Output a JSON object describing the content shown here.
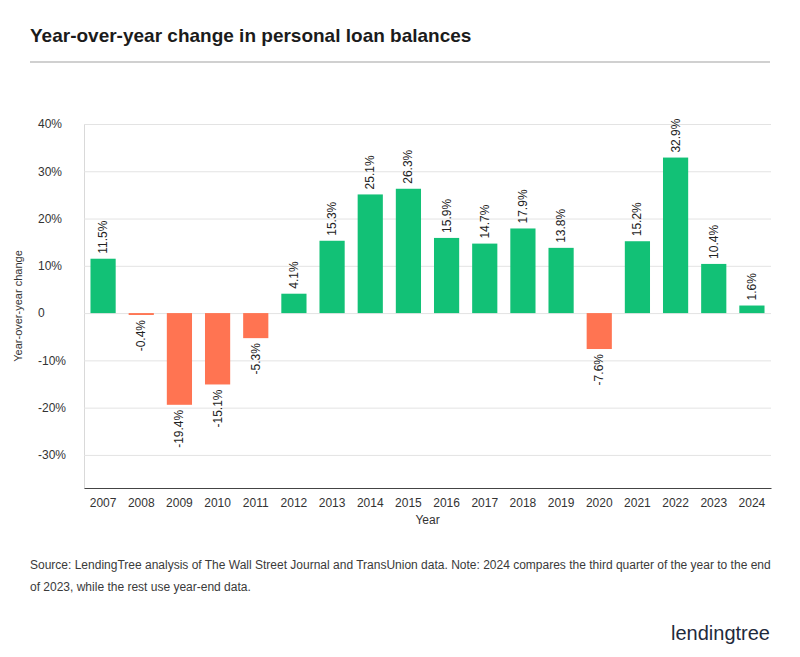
{
  "chart_data": {
    "type": "bar",
    "title": "Year-over-year change in personal loan balances",
    "x_label": "Year",
    "y_label": "Year-over-year change",
    "annotations": [
      "Source: LendingTree analysis of The Wall Street Journal and TransUnion data. Note: 2024 compares the third quarter of the year to the end of 2023, while the rest use year-end data.",
      "lendingtree"
    ],
    "categories": [
      "2007",
      "2008",
      "2009",
      "2010",
      "2011",
      "2012",
      "2013",
      "2014",
      "2015",
      "2016",
      "2017",
      "2018",
      "2019",
      "2020",
      "2021",
      "2022",
      "2023",
      "2024"
    ],
    "values": [
      11.5,
      -0.4,
      -19.4,
      -15.1,
      -5.3,
      4.1,
      15.3,
      25.1,
      26.3,
      15.9,
      14.7,
      17.9,
      13.8,
      -7.6,
      15.2,
      32.9,
      10.4,
      1.6
    ],
    "value_labels": [
      "11.5%",
      "-0.4%",
      "-19.4%",
      "-15.1%",
      "-5.3%",
      "4.1%",
      "15.3%",
      "25.1%",
      "26.3%",
      "15.9%",
      "14.7%",
      "17.9%",
      "13.8%",
      "-7.6%",
      "15.2%",
      "32.9%",
      "10.4%",
      "1.6%"
    ],
    "colors": [
      "#12c176",
      "#ff7452",
      "#ff7452",
      "#ff7452",
      "#ff7452",
      "#12c176",
      "#12c176",
      "#12c176",
      "#12c176",
      "#12c176",
      "#12c176",
      "#12c176",
      "#12c176",
      "#ff7452",
      "#12c176",
      "#12c176",
      "#12c176",
      "#12c176"
    ],
    "ylim": [
      -37,
      40
    ],
    "yticks": [
      {
        "value": -30,
        "label": "-30%"
      },
      {
        "value": -20,
        "label": "-20%"
      },
      {
        "value": -10,
        "label": "-10%"
      },
      0,
      {
        "value": 10,
        "label": "10%"
      },
      {
        "value": 20,
        "label": "20%"
      },
      {
        "value": 30,
        "label": "30%"
      },
      {
        "value": 40,
        "label": "40%"
      }
    ],
    "grid": true,
    "data_labels": true
  }
}
